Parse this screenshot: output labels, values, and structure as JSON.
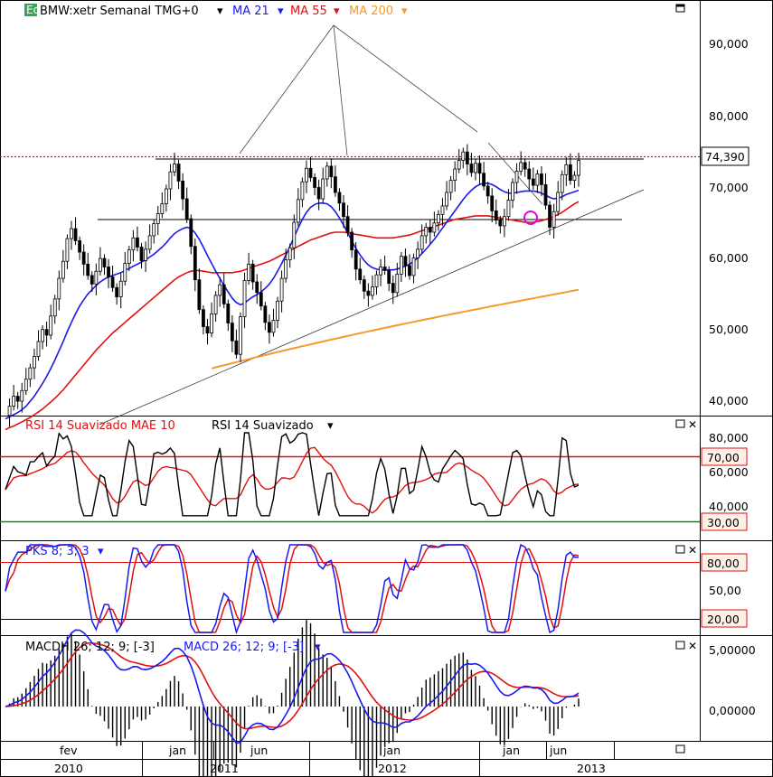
{
  "colors": {
    "price": "#000000",
    "ma21": "#1a1aee",
    "ma55": "#e01010",
    "ma200": "#f59a2c",
    "rsi_signal": "#e01010",
    "rsi_line": "#000000",
    "rsi_upper": "#e01010",
    "rsi_lower": "#118811",
    "pks_k": "#1a1aee",
    "pks_d": "#e01010",
    "macd_line": "#1a1aee",
    "macd_signal": "#e01010",
    "badge_border": "#e01010",
    "badge_fill": "#fff0e8",
    "eq_icon": "#3aa55a"
  },
  "header": {
    "eq_icon": "Eq",
    "symbol": "BMW:xetr Semanal TMG+0",
    "ma21": "MA 21",
    "ma55": "MA 55",
    "ma200": "MA 200"
  },
  "rsi_header": {
    "signal_label": "RSI 14 Suavizado MAE 10",
    "line_label": "RSI 14 Suavizado"
  },
  "pks_header": {
    "label": "PKS 8; 3; 3"
  },
  "macd_header": {
    "hist_label": "MACDH 26; 12; 9; [-3]",
    "line_label": "MACD 26; 12; 9; [-3]"
  },
  "price_axis": {
    "ticks": [
      "90,000",
      "80,000",
      "70,000",
      "60,000",
      "50,000",
      "40,000"
    ],
    "last_price": "74,390"
  },
  "rsi_axis": {
    "ticks": [
      "80,000",
      "60,000",
      "40,000"
    ],
    "upper_badge": "70,00",
    "lower_badge": "30,00"
  },
  "pks_axis": {
    "upper_badge": "80,00",
    "mid_tick": "50,00",
    "lower_badge": "20,00"
  },
  "macd_axis": {
    "ticks": [
      "5,00000",
      "0,00000"
    ]
  },
  "time_axis": {
    "months": [
      "fev",
      "jan",
      "jun",
      "jan",
      "jan",
      "jun"
    ],
    "years": [
      "2010",
      "2011",
      "2012",
      "2013"
    ]
  },
  "chart_data": [
    {
      "type": "candlestick",
      "title": "BMW:xetr Semanal TMG+0",
      "x_range": [
        "2009-11",
        "2013-07"
      ],
      "ylim": [
        37,
        96
      ],
      "closes": [
        38.5,
        39.8,
        41.2,
        40.5,
        42.0,
        43.6,
        45.2,
        46.8,
        48.9,
        50.6,
        49.8,
        52.5,
        54.9,
        57.8,
        60.2,
        63.4,
        64.8,
        63.1,
        61.5,
        59.8,
        58.2,
        57.0,
        58.8,
        60.6,
        59.4,
        58.0,
        56.5,
        55.2,
        57.4,
        59.9,
        61.8,
        63.5,
        62.2,
        60.3,
        61.9,
        63.8,
        65.5,
        66.9,
        68.3,
        70.4,
        72.8,
        73.9,
        71.5,
        69.0,
        66.2,
        62.3,
        57.6,
        53.4,
        51.0,
        50.1,
        52.8,
        55.4,
        56.9,
        54.2,
        51.5,
        49.0,
        47.1,
        52.4,
        57.5,
        59.8,
        57.3,
        55.8,
        53.9,
        51.6,
        50.2,
        51.9,
        54.6,
        57.8,
        60.4,
        62.1,
        65.7,
        68.9,
        71.4,
        73.3,
        72.0,
        70.6,
        69.0,
        71.8,
        73.6,
        72.1,
        69.9,
        68.4,
        66.5,
        64.3,
        61.8,
        59.1,
        57.6,
        56.0,
        55.4,
        56.6,
        58.3,
        59.4,
        58.9,
        57.1,
        55.8,
        58.4,
        60.9,
        59.6,
        58.2,
        60.7,
        61.9,
        63.8,
        65.0,
        64.3,
        65.6,
        66.8,
        68.0,
        69.9,
        71.6,
        73.2,
        74.4,
        75.6,
        73.9,
        72.7,
        74.0,
        72.6,
        70.8,
        69.4,
        67.3,
        66.0,
        65.2,
        66.5,
        68.8,
        71.3,
        72.9,
        74.1,
        73.2,
        71.8,
        70.9,
        72.5,
        71.0,
        68.1,
        65.0,
        67.2,
        69.9,
        72.4,
        73.8,
        71.6,
        72.3,
        74.4
      ],
      "ma21": [
        38.0,
        38.3,
        38.6,
        38.9,
        39.3,
        39.8,
        40.5,
        41.2,
        42.1,
        43.0,
        44.0,
        45.1,
        46.3,
        47.6,
        48.9,
        50.3,
        51.6,
        52.8,
        53.9,
        54.8,
        55.6,
        56.2,
        56.8,
        57.3,
        57.7,
        58.0,
        58.2,
        58.4,
        58.6,
        58.9,
        59.2,
        59.5,
        59.8,
        60.1,
        60.4,
        60.8,
        61.2,
        61.7,
        62.2,
        62.8,
        63.5,
        64.1,
        64.5,
        64.8,
        65.0,
        64.8,
        64.2,
        63.3,
        62.2,
        61.0,
        59.9,
        58.8,
        57.8,
        56.8,
        55.9,
        55.0,
        54.4,
        54.1,
        54.3,
        54.8,
        55.2,
        55.5,
        55.9,
        56.4,
        57.0,
        57.8,
        58.8,
        59.9,
        61.1,
        62.3,
        63.6,
        64.9,
        66.1,
        67.1,
        67.8,
        68.2,
        68.4,
        68.4,
        68.3,
        67.9,
        67.2,
        66.3,
        65.3,
        64.2,
        63.1,
        62.0,
        61.1,
        60.3,
        59.7,
        59.3,
        59.1,
        59.0,
        59.0,
        59.0,
        59.0,
        59.1,
        59.3,
        59.5,
        59.8,
        60.2,
        60.7,
        61.3,
        61.9,
        62.6,
        63.3,
        64.1,
        64.9,
        65.7,
        66.5,
        67.3,
        68.1,
        68.9,
        69.6,
        70.2,
        70.7,
        71.0,
        71.2,
        71.2,
        71.0,
        70.7,
        70.3,
        70.0,
        69.8,
        69.8,
        69.9,
        70.0,
        70.1,
        70.1,
        70.1,
        70.0,
        69.8,
        69.5,
        69.2,
        69.0,
        69.1,
        69.3,
        69.6,
        69.8,
        70.0,
        70.2
      ],
      "ma55": [
        36.5,
        36.8,
        37.0,
        37.3,
        37.6,
        37.9,
        38.2,
        38.6,
        39.0,
        39.4,
        39.9,
        40.4,
        40.9,
        41.5,
        42.1,
        42.8,
        43.5,
        44.2,
        44.9,
        45.6,
        46.3,
        47.0,
        47.7,
        48.3,
        48.9,
        49.5,
        50.1,
        50.6,
        51.1,
        51.6,
        52.1,
        52.6,
        53.1,
        53.6,
        54.1,
        54.6,
        55.1,
        55.6,
        56.1,
        56.6,
        57.1,
        57.6,
        58.0,
        58.3,
        58.6,
        58.8,
        58.9,
        58.9,
        58.8,
        58.7,
        58.6,
        58.6,
        58.6,
        58.6,
        58.6,
        58.6,
        58.7,
        58.8,
        59.0,
        59.2,
        59.4,
        59.6,
        59.8,
        60.0,
        60.2,
        60.5,
        60.8,
        61.1,
        61.4,
        61.7,
        62.0,
        62.3,
        62.6,
        62.9,
        63.2,
        63.4,
        63.6,
        63.8,
        64.0,
        64.2,
        64.3,
        64.3,
        64.3,
        64.2,
        64.1,
        64.0,
        63.9,
        63.8,
        63.7,
        63.6,
        63.5,
        63.5,
        63.5,
        63.5,
        63.5,
        63.6,
        63.7,
        63.8,
        63.9,
        64.1,
        64.3,
        64.5,
        64.7,
        64.9,
        65.1,
        65.3,
        65.5,
        65.7,
        65.9,
        66.1,
        66.2,
        66.3,
        66.4,
        66.5,
        66.6,
        66.6,
        66.6,
        66.6,
        66.5,
        66.4,
        66.3,
        66.2,
        66.1,
        66.0,
        65.9,
        65.8,
        65.7,
        65.7,
        65.7,
        65.8,
        65.9,
        66.1,
        66.3,
        66.5,
        66.8,
        67.1,
        67.5,
        67.9,
        68.3,
        68.6
      ]
    }
  ]
}
